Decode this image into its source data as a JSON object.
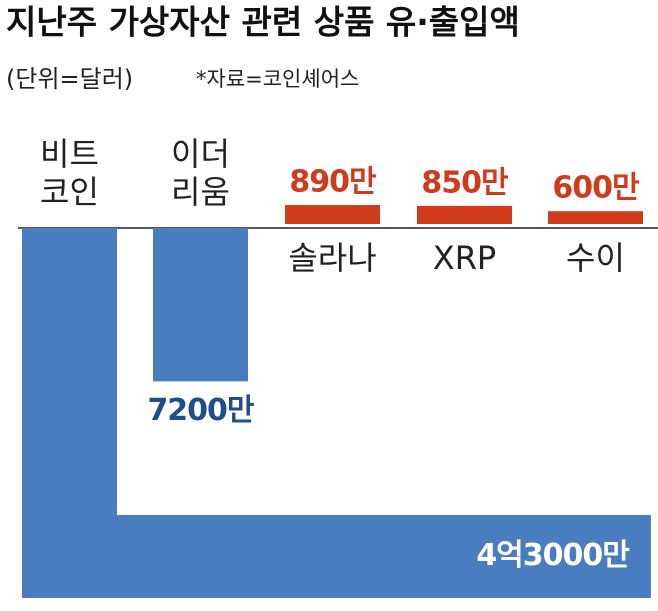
{
  "chart_data": {
    "type": "bar",
    "title": "지난주 가상자산 관련 상품 유·출입액",
    "subtitle": "(단위=달러)",
    "source": "*자료=코인셰어스",
    "categories": [
      [
        "비트",
        "코인"
      ],
      [
        "이더",
        "리움"
      ],
      [
        "솔라나"
      ],
      [
        "XRP"
      ],
      [
        "수이"
      ]
    ],
    "values": [
      -43000,
      -7200,
      890,
      850,
      600
    ],
    "value_labels": [
      "4억3000만",
      "7200만",
      "890만",
      "850만",
      "600만"
    ],
    "colors": {
      "negative": "#4a7dbf",
      "positive": "#d23a1c"
    }
  }
}
